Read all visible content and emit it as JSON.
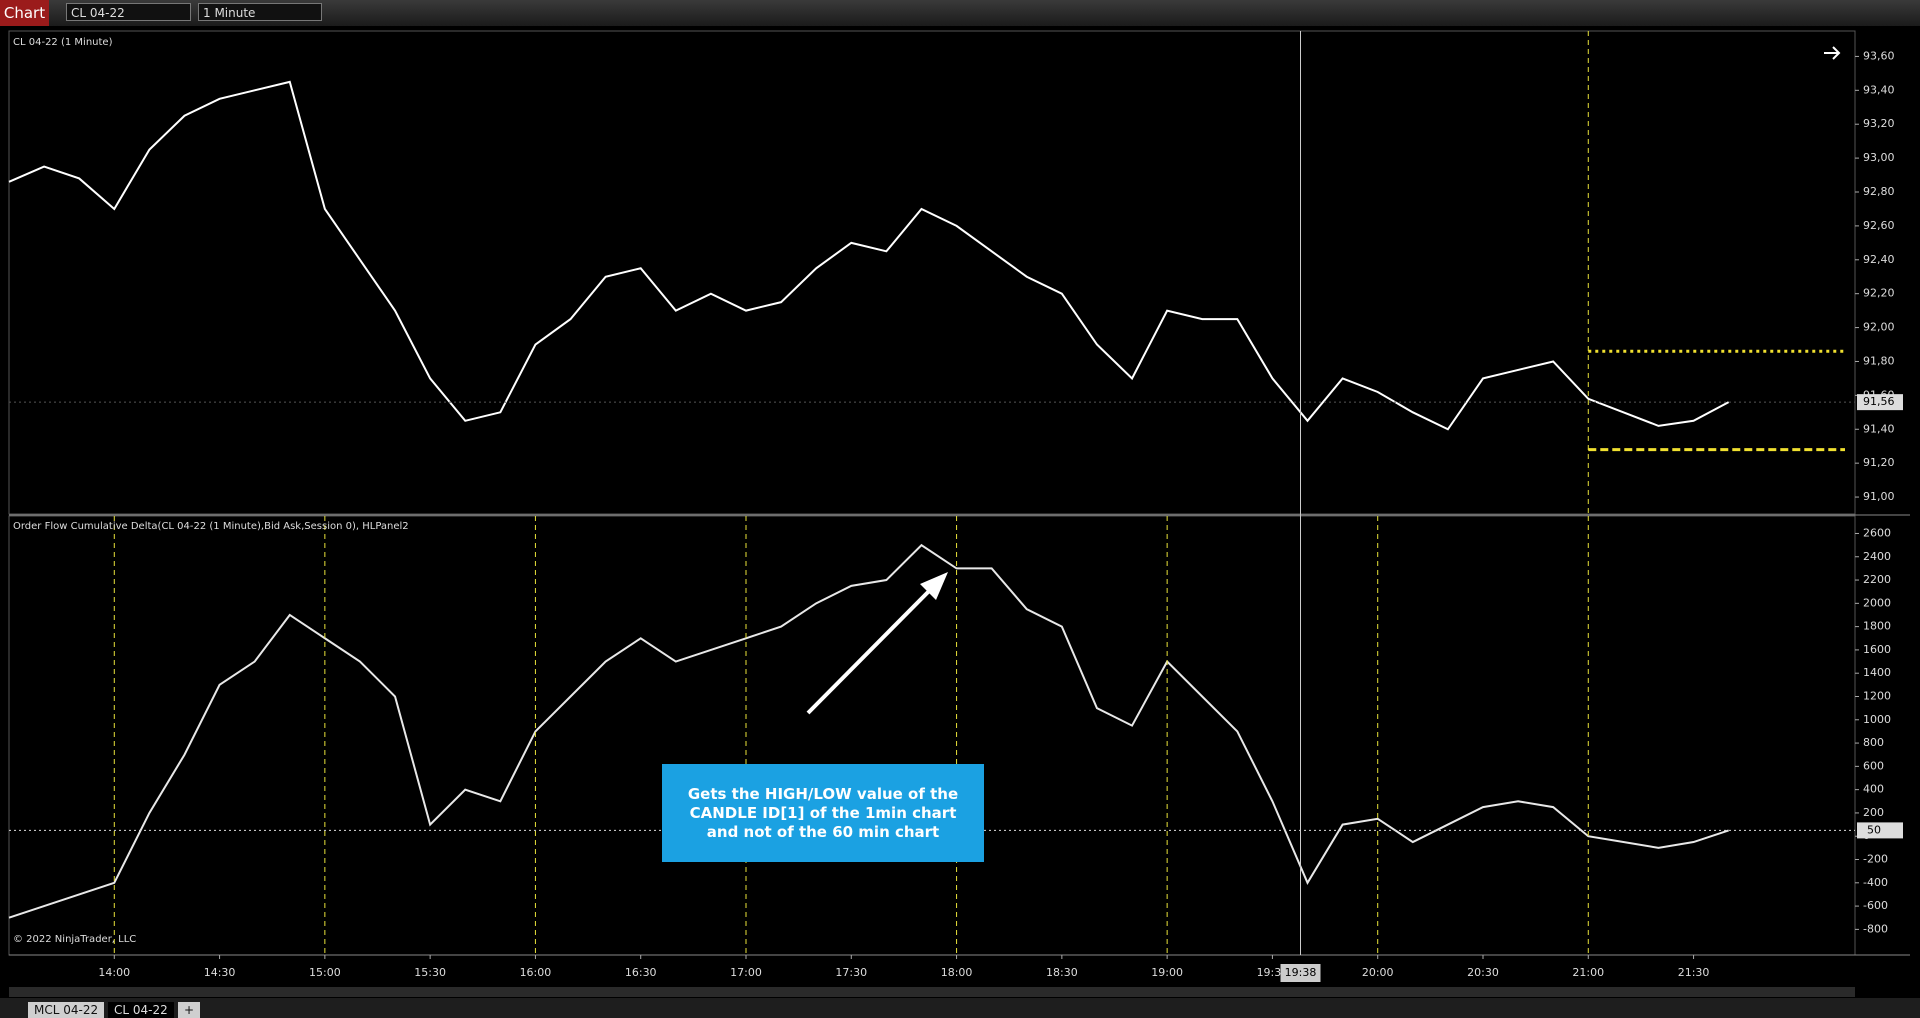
{
  "toolbar": {
    "app": "Chart",
    "instrument": "CL 04-22",
    "interval": "1 Minute"
  },
  "price_panel": {
    "title": "CL 04-22 (1 Minute)",
    "ylim": [
      90.9,
      93.75
    ],
    "yticks": [
      {
        "value": 91.0,
        "label": "91,00"
      },
      {
        "value": 91.2,
        "label": "91,20"
      },
      {
        "value": 91.4,
        "label": "91,40"
      },
      {
        "value": 91.6,
        "label": "91,60"
      },
      {
        "value": 91.8,
        "label": "91,80"
      },
      {
        "value": 92.0,
        "label": "92,00"
      },
      {
        "value": 92.2,
        "label": "92,20"
      },
      {
        "value": 92.4,
        "label": "92,40"
      },
      {
        "value": 92.6,
        "label": "92,60"
      },
      {
        "value": 92.8,
        "label": "92,80"
      },
      {
        "value": 93.0,
        "label": "93,00"
      },
      {
        "value": 93.2,
        "label": "93,20"
      },
      {
        "value": 93.4,
        "label": "93,40"
      },
      {
        "value": 93.6,
        "label": "93,60"
      }
    ],
    "last": {
      "value": 91.56,
      "label": "91,56"
    },
    "levels": [
      91.86,
      91.28
    ],
    "series": {
      "color": "#ffffff",
      "values": [
        92.86,
        92.95,
        92.88,
        92.7,
        93.05,
        93.25,
        93.35,
        93.4,
        93.45,
        92.7,
        92.4,
        92.1,
        91.7,
        91.45,
        91.5,
        91.9,
        92.05,
        92.3,
        92.35,
        92.1,
        92.2,
        92.1,
        92.15,
        92.35,
        92.5,
        92.45,
        92.7,
        92.6,
        92.45,
        92.3,
        92.2,
        91.9,
        91.7,
        92.1,
        92.05,
        92.05,
        91.7,
        91.45,
        91.7,
        91.62,
        91.5,
        91.4,
        91.7,
        91.75,
        91.8,
        91.58,
        91.5,
        91.42,
        91.45,
        91.56
      ]
    }
  },
  "delta_panel": {
    "title": "Order Flow Cumulative Delta(CL 04-22 (1 Minute),Bid Ask,Session 0), HLPanel2",
    "copyright": "© 2022 NinjaTrader, LLC",
    "ylim": [
      -1020,
      2750
    ],
    "yticks": [
      -800,
      -600,
      -400,
      -200,
      0,
      200,
      400,
      600,
      800,
      1000,
      1200,
      1400,
      1600,
      1800,
      2000,
      2200,
      2400,
      2600
    ],
    "last": 50,
    "series": {
      "color": "#e8e8e8",
      "values": [
        -700,
        -600,
        -500,
        -400,
        200,
        700,
        1300,
        1500,
        1900,
        1700,
        1500,
        1200,
        100,
        400,
        300,
        900,
        1200,
        1500,
        1700,
        1500,
        1600,
        1700,
        1800,
        2000,
        2150,
        2200,
        2500,
        2300,
        2300,
        1950,
        1800,
        1100,
        950,
        1500,
        1200,
        900,
        300,
        -400,
        100,
        150,
        -50,
        100,
        250,
        300,
        250,
        0,
        -50,
        -100,
        -50,
        50
      ]
    }
  },
  "time_axis": {
    "xlim": [
      810,
      1336
    ],
    "x": [
      810,
      820,
      830,
      840,
      850,
      860,
      870,
      880,
      890,
      900,
      910,
      920,
      930,
      940,
      950,
      960,
      970,
      980,
      990,
      1000,
      1010,
      1020,
      1030,
      1040,
      1050,
      1060,
      1070,
      1080,
      1090,
      1100,
      1110,
      1120,
      1130,
      1140,
      1150,
      1160,
      1170,
      1180,
      1190,
      1200,
      1210,
      1220,
      1230,
      1240,
      1250,
      1260,
      1270,
      1280,
      1290,
      1300
    ],
    "xticks": [
      {
        "value": 840,
        "label": "14:00"
      },
      {
        "value": 870,
        "label": "14:30"
      },
      {
        "value": 900,
        "label": "15:00"
      },
      {
        "value": 930,
        "label": "15:30"
      },
      {
        "value": 960,
        "label": "16:00"
      },
      {
        "value": 990,
        "label": "16:30"
      },
      {
        "value": 1020,
        "label": "17:00"
      },
      {
        "value": 1050,
        "label": "17:30"
      },
      {
        "value": 1080,
        "label": "18:00"
      },
      {
        "value": 1110,
        "label": "18:30"
      },
      {
        "value": 1140,
        "label": "19:00"
      },
      {
        "value": 1170,
        "label": "19:30"
      },
      {
        "value": 1200,
        "label": "20:00"
      },
      {
        "value": 1230,
        "label": "20:30"
      },
      {
        "value": 1260,
        "label": "21:00"
      },
      {
        "value": 1290,
        "label": "21:30"
      }
    ],
    "crosshair": {
      "value": 1178,
      "label": "19:38"
    }
  },
  "annotation": "Gets the HIGH/LOW value of the CANDLE ID[1] of the 1min chart and not of the 60 min chart",
  "tabs": [
    "MCL 04-22",
    "CL 04-22",
    "+"
  ]
}
